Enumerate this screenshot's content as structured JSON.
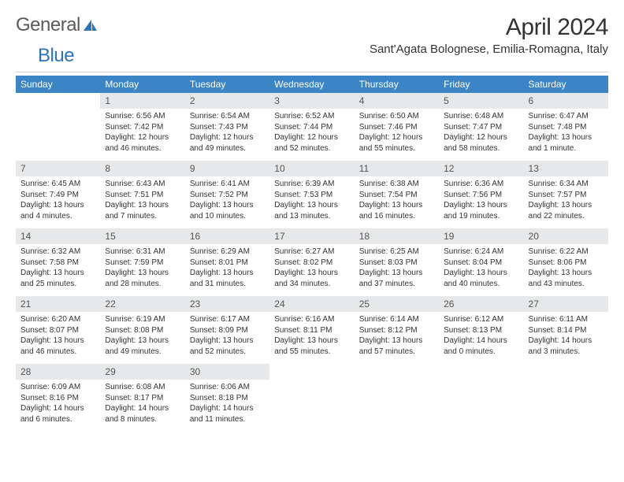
{
  "logo": {
    "part1": "General",
    "part2": "Blue"
  },
  "title": "April 2024",
  "location": "Sant'Agata Bolognese, Emilia-Romagna, Italy",
  "colors": {
    "header_bg": "#3b85c6",
    "header_text": "#ffffff",
    "daynum_bg": "#e7e8e9",
    "daynum_text": "#555555",
    "body_text": "#333333",
    "divider": "#d0d0d0",
    "logo_gray": "#6b6b6b",
    "logo_blue": "#2d73b8"
  },
  "weekdays": [
    "Sunday",
    "Monday",
    "Tuesday",
    "Wednesday",
    "Thursday",
    "Friday",
    "Saturday"
  ],
  "cells": [
    {
      "num": "",
      "lines": []
    },
    {
      "num": "1",
      "lines": [
        "Sunrise: 6:56 AM",
        "Sunset: 7:42 PM",
        "Daylight: 12 hours",
        "and 46 minutes."
      ]
    },
    {
      "num": "2",
      "lines": [
        "Sunrise: 6:54 AM",
        "Sunset: 7:43 PM",
        "Daylight: 12 hours",
        "and 49 minutes."
      ]
    },
    {
      "num": "3",
      "lines": [
        "Sunrise: 6:52 AM",
        "Sunset: 7:44 PM",
        "Daylight: 12 hours",
        "and 52 minutes."
      ]
    },
    {
      "num": "4",
      "lines": [
        "Sunrise: 6:50 AM",
        "Sunset: 7:46 PM",
        "Daylight: 12 hours",
        "and 55 minutes."
      ]
    },
    {
      "num": "5",
      "lines": [
        "Sunrise: 6:48 AM",
        "Sunset: 7:47 PM",
        "Daylight: 12 hours",
        "and 58 minutes."
      ]
    },
    {
      "num": "6",
      "lines": [
        "Sunrise: 6:47 AM",
        "Sunset: 7:48 PM",
        "Daylight: 13 hours",
        "and 1 minute."
      ]
    },
    {
      "num": "7",
      "lines": [
        "Sunrise: 6:45 AM",
        "Sunset: 7:49 PM",
        "Daylight: 13 hours",
        "and 4 minutes."
      ]
    },
    {
      "num": "8",
      "lines": [
        "Sunrise: 6:43 AM",
        "Sunset: 7:51 PM",
        "Daylight: 13 hours",
        "and 7 minutes."
      ]
    },
    {
      "num": "9",
      "lines": [
        "Sunrise: 6:41 AM",
        "Sunset: 7:52 PM",
        "Daylight: 13 hours",
        "and 10 minutes."
      ]
    },
    {
      "num": "10",
      "lines": [
        "Sunrise: 6:39 AM",
        "Sunset: 7:53 PM",
        "Daylight: 13 hours",
        "and 13 minutes."
      ]
    },
    {
      "num": "11",
      "lines": [
        "Sunrise: 6:38 AM",
        "Sunset: 7:54 PM",
        "Daylight: 13 hours",
        "and 16 minutes."
      ]
    },
    {
      "num": "12",
      "lines": [
        "Sunrise: 6:36 AM",
        "Sunset: 7:56 PM",
        "Daylight: 13 hours",
        "and 19 minutes."
      ]
    },
    {
      "num": "13",
      "lines": [
        "Sunrise: 6:34 AM",
        "Sunset: 7:57 PM",
        "Daylight: 13 hours",
        "and 22 minutes."
      ]
    },
    {
      "num": "14",
      "lines": [
        "Sunrise: 6:32 AM",
        "Sunset: 7:58 PM",
        "Daylight: 13 hours",
        "and 25 minutes."
      ]
    },
    {
      "num": "15",
      "lines": [
        "Sunrise: 6:31 AM",
        "Sunset: 7:59 PM",
        "Daylight: 13 hours",
        "and 28 minutes."
      ]
    },
    {
      "num": "16",
      "lines": [
        "Sunrise: 6:29 AM",
        "Sunset: 8:01 PM",
        "Daylight: 13 hours",
        "and 31 minutes."
      ]
    },
    {
      "num": "17",
      "lines": [
        "Sunrise: 6:27 AM",
        "Sunset: 8:02 PM",
        "Daylight: 13 hours",
        "and 34 minutes."
      ]
    },
    {
      "num": "18",
      "lines": [
        "Sunrise: 6:25 AM",
        "Sunset: 8:03 PM",
        "Daylight: 13 hours",
        "and 37 minutes."
      ]
    },
    {
      "num": "19",
      "lines": [
        "Sunrise: 6:24 AM",
        "Sunset: 8:04 PM",
        "Daylight: 13 hours",
        "and 40 minutes."
      ]
    },
    {
      "num": "20",
      "lines": [
        "Sunrise: 6:22 AM",
        "Sunset: 8:06 PM",
        "Daylight: 13 hours",
        "and 43 minutes."
      ]
    },
    {
      "num": "21",
      "lines": [
        "Sunrise: 6:20 AM",
        "Sunset: 8:07 PM",
        "Daylight: 13 hours",
        "and 46 minutes."
      ]
    },
    {
      "num": "22",
      "lines": [
        "Sunrise: 6:19 AM",
        "Sunset: 8:08 PM",
        "Daylight: 13 hours",
        "and 49 minutes."
      ]
    },
    {
      "num": "23",
      "lines": [
        "Sunrise: 6:17 AM",
        "Sunset: 8:09 PM",
        "Daylight: 13 hours",
        "and 52 minutes."
      ]
    },
    {
      "num": "24",
      "lines": [
        "Sunrise: 6:16 AM",
        "Sunset: 8:11 PM",
        "Daylight: 13 hours",
        "and 55 minutes."
      ]
    },
    {
      "num": "25",
      "lines": [
        "Sunrise: 6:14 AM",
        "Sunset: 8:12 PM",
        "Daylight: 13 hours",
        "and 57 minutes."
      ]
    },
    {
      "num": "26",
      "lines": [
        "Sunrise: 6:12 AM",
        "Sunset: 8:13 PM",
        "Daylight: 14 hours",
        "and 0 minutes."
      ]
    },
    {
      "num": "27",
      "lines": [
        "Sunrise: 6:11 AM",
        "Sunset: 8:14 PM",
        "Daylight: 14 hours",
        "and 3 minutes."
      ]
    },
    {
      "num": "28",
      "lines": [
        "Sunrise: 6:09 AM",
        "Sunset: 8:16 PM",
        "Daylight: 14 hours",
        "and 6 minutes."
      ]
    },
    {
      "num": "29",
      "lines": [
        "Sunrise: 6:08 AM",
        "Sunset: 8:17 PM",
        "Daylight: 14 hours",
        "and 8 minutes."
      ]
    },
    {
      "num": "30",
      "lines": [
        "Sunrise: 6:06 AM",
        "Sunset: 8:18 PM",
        "Daylight: 14 hours",
        "and 11 minutes."
      ]
    },
    {
      "num": "",
      "lines": []
    },
    {
      "num": "",
      "lines": []
    },
    {
      "num": "",
      "lines": []
    },
    {
      "num": "",
      "lines": []
    }
  ]
}
